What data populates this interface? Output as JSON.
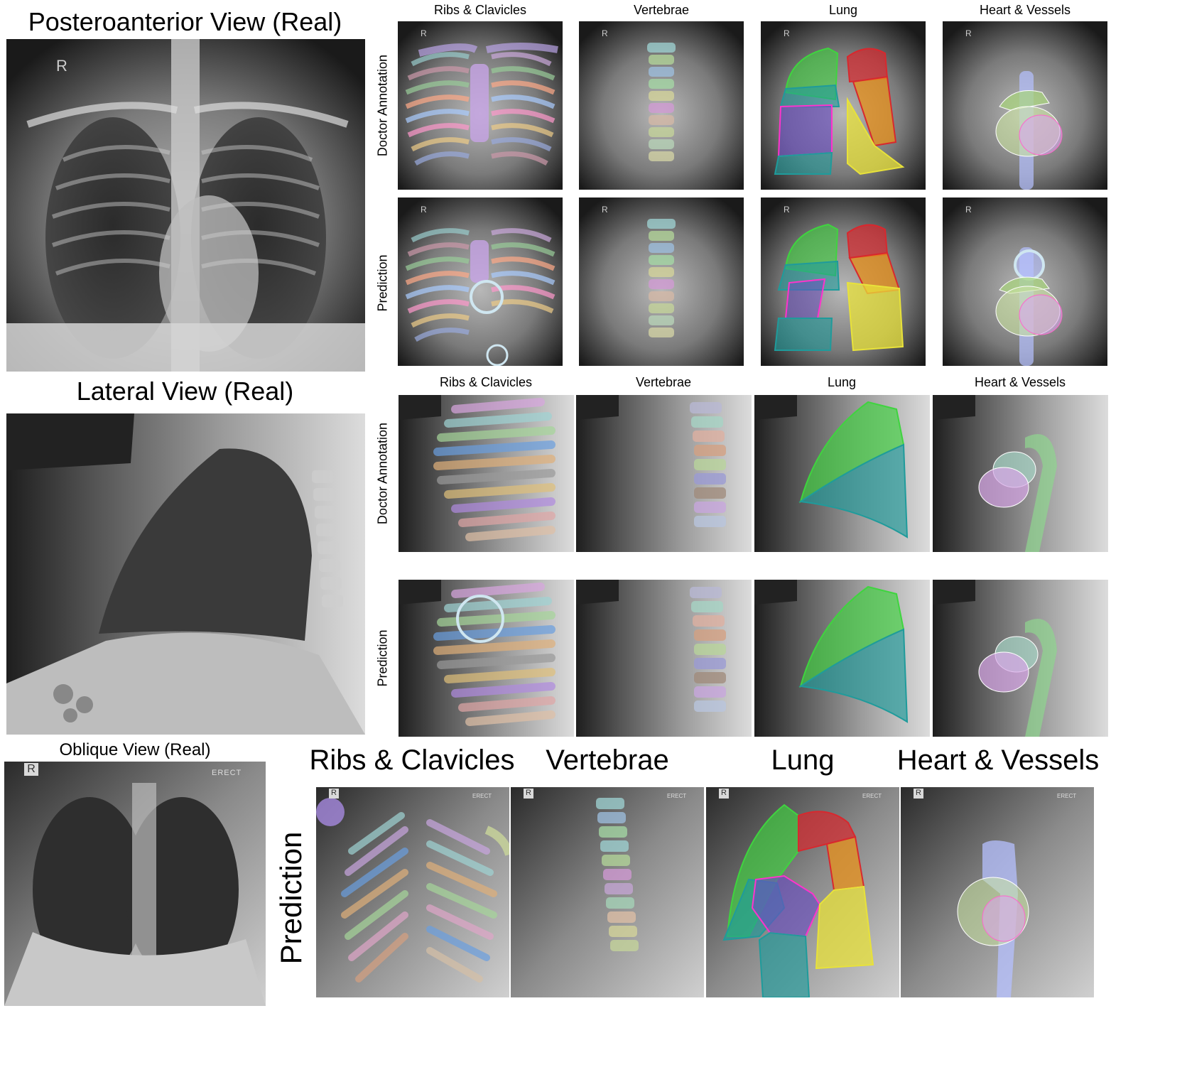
{
  "pa": {
    "title": "Posteroanterior View (Real)",
    "marker": "R",
    "cols": [
      "Ribs & Clavicles",
      "Vertebrae",
      "Lung",
      "Heart & Vessels"
    ],
    "rows": [
      "Doctor Annotation",
      "Prediction"
    ]
  },
  "lateral": {
    "title": "Lateral View (Real)",
    "cols": [
      "Ribs & Clavicles",
      "Vertebrae",
      "Lung",
      "Heart & Vessels"
    ],
    "rows": [
      "Doctor Annotation",
      "Prediction"
    ]
  },
  "oblique": {
    "title": "Oblique View (Real)",
    "marker": "R",
    "erect": "ERECT",
    "cols": [
      "Ribs & Clavicles",
      "Vertebrae",
      "Lung",
      "Heart & Vessels"
    ],
    "row": "Prediction"
  },
  "colors": {
    "lung_green": "#3fd43f",
    "lung_teal": "#1f9b9b",
    "lung_purple": "#6a4fc0",
    "lung_red": "#d8282e",
    "lung_orange": "#e8901a",
    "lung_yellow": "#e8e23a",
    "heart_lilac": "#b59ce0",
    "circle_highlight": "#cfe6f0"
  }
}
